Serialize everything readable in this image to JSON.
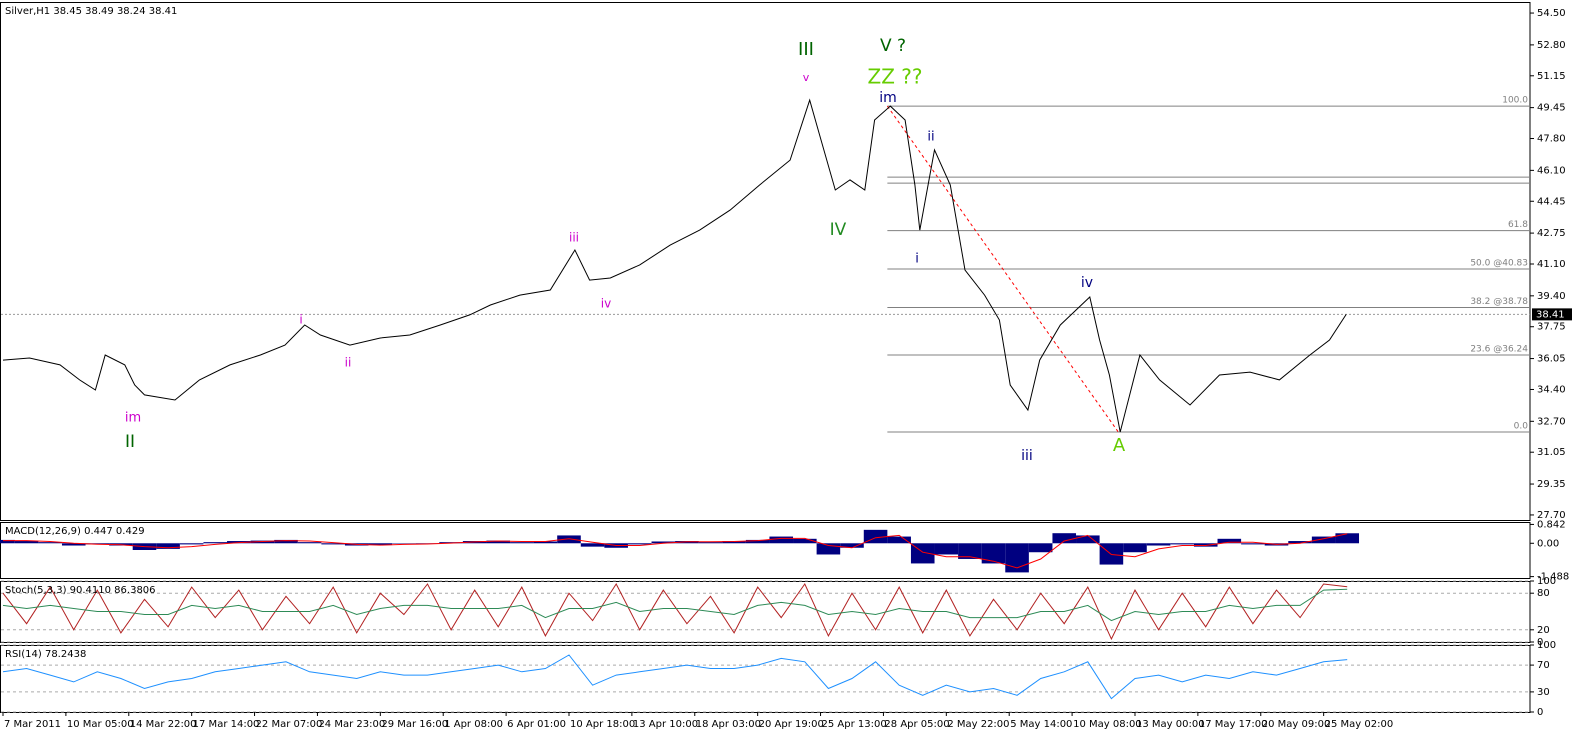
{
  "chart_data": [
    {
      "type": "line",
      "title": "Silver,H1  38.45 38.49 38.24 38.41",
      "xlim": [
        0,
        1554
      ],
      "ylim": [
        27.43,
        55.09
      ],
      "yticks": [
        {
          "value": 54.5,
          "label": "54.50"
        },
        {
          "value": 52.8,
          "label": "52.80"
        },
        51.15,
        49.45,
        {
          "value": 47.8,
          "label": "47.80"
        },
        {
          "value": 46.1,
          "label": "46.10"
        },
        44.45,
        42.75,
        {
          "value": 41.1,
          "label": "41.10"
        },
        {
          "value": 39.4,
          "label": "39.40"
        },
        37.75,
        36.05,
        {
          "value": 34.4,
          "label": "34.40"
        },
        {
          "value": 32.7,
          "label": "32.70"
        },
        31.05,
        29.35,
        {
          "value": 27.7,
          "label": "27.70"
        }
      ],
      "grid": false,
      "x": [
        0,
        27,
        58,
        78,
        94,
        104,
        124,
        134,
        144,
        175,
        200,
        231,
        262,
        287,
        307,
        323,
        353,
        384,
        414,
        445,
        475,
        496,
        526,
        557,
        582,
        597,
        618,
        648,
        679,
        709,
        740,
        770,
        801,
        821,
        831,
        847,
        862,
        877,
        887,
        903,
        918,
        928,
        933,
        948,
        964,
        979,
        999,
        1014,
        1025,
        1043,
        1055,
        1076,
        1106,
        1116,
        1126,
        1137,
        1157,
        1177,
        1208,
        1238,
        1269,
        1299,
        1330,
        1350,
        1367
      ],
      "series": [
        {
          "type": "line",
          "color": "#000000",
          "values": [
            35.97,
            36.08,
            35.71,
            34.91,
            34.37,
            36.24,
            35.71,
            34.64,
            34.11,
            33.84,
            34.91,
            35.71,
            36.24,
            36.77,
            37.84,
            37.31,
            36.77,
            37.15,
            37.31,
            37.84,
            38.38,
            38.91,
            39.44,
            39.71,
            41.85,
            40.24,
            40.35,
            41.05,
            42.11,
            42.91,
            43.98,
            45.32,
            46.65,
            49.85,
            47.99,
            45.05,
            45.59,
            45.05,
            48.79,
            49.53,
            48.79,
            45.32,
            42.91,
            47.19,
            45.32,
            40.78,
            39.44,
            38.11,
            34.64,
            33.3,
            35.97,
            37.84,
            39.34,
            37.04,
            35.17,
            32.13,
            36.24,
            34.91,
            33.57,
            35.17,
            35.33,
            34.91,
            36.24,
            37.04,
            38.41
          ]
        }
      ],
      "last_price": 38.41,
      "fibo": {
        "color": "#ff0000",
        "from": [
          900,
          49.53
        ],
        "to": [
          1135,
          32.13
        ],
        "levels": [
          {
            "value": 49.53,
            "label": "100.0"
          },
          {
            "value": 45.74
          },
          {
            "value": 45.42
          },
          {
            "value": 42.88,
            "label": "61.8"
          },
          {
            "value": 40.83,
            "label": "50.0 @40.83"
          },
          {
            "value": 38.78,
            "label": "38.2 @38.78"
          },
          {
            "value": 36.24,
            "label": "23.6 @36.24"
          },
          {
            "value": 32.13,
            "label": "0.0"
          }
        ]
      },
      "annotations": [
        {
          "text": "III",
          "color": "#006400"
        },
        {
          "text": "V ?",
          "color": "#006400"
        },
        {
          "text": "ZZ ??",
          "color": "#66cc00"
        },
        {
          "text": "v",
          "color": "#cc00cc"
        },
        {
          "text": "im",
          "color": "#000080"
        },
        {
          "text": "ii",
          "color": "#000080"
        },
        {
          "text": "IV",
          "color": "#228b22"
        },
        {
          "text": "i",
          "color": "#000080"
        },
        {
          "text": "iii",
          "color": "#cc00cc"
        },
        {
          "text": "iv",
          "color": "#cc00cc"
        },
        {
          "text": "i",
          "color": "#cc00cc"
        },
        {
          "text": "ii",
          "color": "#cc00cc"
        },
        {
          "text": "im",
          "color": "#cc00cc"
        },
        {
          "text": "II",
          "color": "#006400"
        },
        {
          "text": "iv",
          "color": "#000080"
        },
        {
          "text": "iii",
          "color": "#000080"
        },
        {
          "text": "A",
          "color": "#66cc00"
        }
      ]
    },
    {
      "type": "bar",
      "title": "MACD(12,26,9) 0.447 0.429",
      "xlim": [
        0,
        1554
      ],
      "ylim": [
        -1.55,
        0.95
      ],
      "yticks": [
        0.842,
        {
          "value": 0,
          "label": "0.00"
        },
        -1.488
      ],
      "grid": false,
      "x": [
        0,
        24,
        48,
        72,
        96,
        120,
        144,
        168,
        192,
        216,
        240,
        264,
        288,
        312,
        336,
        360,
        384,
        408,
        432,
        456,
        480,
        504,
        528,
        552,
        576,
        600,
        624,
        648,
        672,
        696,
        720,
        744,
        768,
        792,
        816,
        840,
        864,
        888,
        912,
        936,
        960,
        984,
        1008,
        1032,
        1056,
        1080,
        1104,
        1128,
        1152,
        1176,
        1200,
        1224,
        1248,
        1272,
        1296,
        1320,
        1344,
        1368
      ],
      "series": [
        {
          "type": "bar",
          "color": "#000080",
          "values": [
            0.15,
            0.1,
            0.05,
            -0.1,
            -0.05,
            -0.1,
            -0.3,
            -0.25,
            -0.05,
            0.05,
            0.1,
            0.12,
            0.15,
            0.05,
            -0.05,
            -0.1,
            -0.08,
            -0.02,
            -0.03,
            0.05,
            0.1,
            0.12,
            0.05,
            0.08,
            0.35,
            -0.15,
            -0.2,
            -0.05,
            0.08,
            0.1,
            0.05,
            0.1,
            0.15,
            0.3,
            0.2,
            -0.5,
            -0.2,
            0.6,
            0.3,
            -0.9,
            -0.5,
            -0.7,
            -0.9,
            -1.3,
            -0.4,
            0.45,
            0.35,
            -0.95,
            -0.4,
            -0.1,
            -0.05,
            -0.15,
            0.2,
            -0.05,
            -0.1,
            0.1,
            0.3,
            0.447
          ]
        },
        {
          "type": "line",
          "color": "#ff0000",
          "values": [
            0.12,
            0.12,
            0.08,
            0,
            -0.04,
            -0.07,
            -0.15,
            -0.2,
            -0.15,
            -0.05,
            0.03,
            0.08,
            0.12,
            0.1,
            0.03,
            -0.05,
            -0.08,
            -0.05,
            -0.03,
            0.01,
            0.06,
            0.1,
            0.08,
            0.08,
            0.2,
            0.05,
            -0.1,
            -0.1,
            0,
            0.07,
            0.07,
            0.08,
            0.12,
            0.22,
            0.22,
            -0.1,
            -0.2,
            0.25,
            0.35,
            -0.4,
            -0.6,
            -0.6,
            -0.8,
            -1.1,
            -0.7,
            0.1,
            0.35,
            -0.5,
            -0.6,
            -0.25,
            -0.1,
            -0.1,
            0.05,
            0.05,
            -0.05,
            0,
            0.2,
            0.429
          ]
        }
      ]
    },
    {
      "type": "line",
      "title": "Stoch(5,3,3) 90.4110 86.3806",
      "xlim": [
        0,
        1554
      ],
      "ylim": [
        0,
        100
      ],
      "yticks": [
        100,
        80,
        20,
        0
      ],
      "grid": true,
      "x": [
        0,
        24,
        48,
        72,
        96,
        120,
        144,
        168,
        192,
        216,
        240,
        264,
        288,
        312,
        336,
        360,
        384,
        408,
        432,
        456,
        480,
        504,
        528,
        552,
        576,
        600,
        624,
        648,
        672,
        696,
        720,
        744,
        768,
        792,
        816,
        840,
        864,
        888,
        912,
        936,
        960,
        984,
        1008,
        1032,
        1056,
        1080,
        1104,
        1128,
        1152,
        1176,
        1200,
        1224,
        1248,
        1272,
        1296,
        1320,
        1344,
        1368
      ],
      "series": [
        {
          "type": "line",
          "color": "#b22222",
          "values": [
            80,
            30,
            90,
            20,
            85,
            15,
            70,
            25,
            90,
            40,
            85,
            20,
            75,
            30,
            90,
            15,
            80,
            45,
            95,
            20,
            85,
            25,
            90,
            10,
            80,
            35,
            95,
            20,
            85,
            30,
            75,
            15,
            90,
            40,
            95,
            10,
            80,
            20,
            90,
            15,
            85,
            10,
            70,
            20,
            80,
            30,
            90,
            5,
            85,
            20,
            80,
            25,
            90,
            30,
            85,
            40,
            95,
            90.41
          ]
        },
        {
          "type": "line",
          "color": "#2e8b57",
          "values": [
            60,
            55,
            60,
            55,
            50,
            50,
            45,
            45,
            60,
            55,
            60,
            50,
            50,
            50,
            60,
            45,
            55,
            60,
            60,
            55,
            55,
            55,
            60,
            40,
            55,
            55,
            65,
            50,
            55,
            55,
            50,
            45,
            60,
            65,
            60,
            45,
            50,
            45,
            55,
            50,
            50,
            40,
            40,
            40,
            50,
            50,
            60,
            35,
            50,
            45,
            50,
            50,
            60,
            55,
            60,
            60,
            85,
            86.38
          ]
        }
      ]
    },
    {
      "type": "line",
      "title": "RSI(14) 78.2438",
      "xlim": [
        0,
        1554
      ],
      "ylim": [
        0,
        100
      ],
      "yticks": [
        100,
        70,
        30,
        0
      ],
      "grid": true,
      "xticks": [
        {
          "value": 0,
          "label": "7 Mar 2011"
        },
        {
          "value": 64,
          "label": "10 Mar 05:00"
        },
        {
          "value": 128,
          "label": "14 Mar 22:00"
        },
        {
          "value": 192,
          "label": "17 Mar 14:00"
        },
        {
          "value": 256,
          "label": "22 Mar 07:00"
        },
        {
          "value": 320,
          "label": "24 Mar 23:00"
        },
        {
          "value": 384,
          "label": "29 Mar 16:00"
        },
        {
          "value": 448,
          "label": "1 Apr 08:00"
        },
        {
          "value": 512,
          "label": "6 Apr 01:00"
        },
        {
          "value": 576,
          "label": "10 Apr 18:00"
        },
        {
          "value": 640,
          "label": "13 Apr 10:00"
        },
        {
          "value": 704,
          "label": "18 Apr 03:00"
        },
        {
          "value": 768,
          "label": "20 Apr 19:00"
        },
        {
          "value": 832,
          "label": "25 Apr 13:00"
        },
        {
          "value": 896,
          "label": "28 Apr 05:00"
        },
        {
          "value": 960,
          "label": "2 May 22:00"
        },
        {
          "value": 1024,
          "label": "5 May 14:00"
        },
        {
          "value": 1088,
          "label": "10 May 08:00"
        },
        {
          "value": 1152,
          "label": "13 May 00:00"
        },
        {
          "value": 1216,
          "label": "17 May 17:00"
        },
        {
          "value": 1280,
          "label": "20 May 09:00"
        },
        {
          "value": 1344,
          "label": "25 May 02:00"
        }
      ],
      "x": [
        0,
        24,
        48,
        72,
        96,
        120,
        144,
        168,
        192,
        216,
        240,
        264,
        288,
        312,
        336,
        360,
        384,
        408,
        432,
        456,
        480,
        504,
        528,
        552,
        576,
        600,
        624,
        648,
        672,
        696,
        720,
        744,
        768,
        792,
        816,
        840,
        864,
        888,
        912,
        936,
        960,
        984,
        1008,
        1032,
        1056,
        1080,
        1104,
        1128,
        1152,
        1176,
        1200,
        1224,
        1248,
        1272,
        1296,
        1320,
        1344,
        1368
      ],
      "series": [
        {
          "type": "line",
          "color": "#1e90ff",
          "values": [
            60,
            65,
            55,
            45,
            60,
            50,
            35,
            45,
            50,
            60,
            65,
            70,
            75,
            60,
            55,
            50,
            60,
            55,
            55,
            60,
            65,
            70,
            60,
            65,
            85,
            40,
            55,
            60,
            65,
            70,
            65,
            65,
            70,
            80,
            75,
            35,
            50,
            75,
            40,
            25,
            40,
            30,
            35,
            25,
            50,
            60,
            75,
            20,
            50,
            55,
            45,
            55,
            50,
            60,
            55,
            65,
            75,
            78.24
          ]
        }
      ]
    }
  ]
}
